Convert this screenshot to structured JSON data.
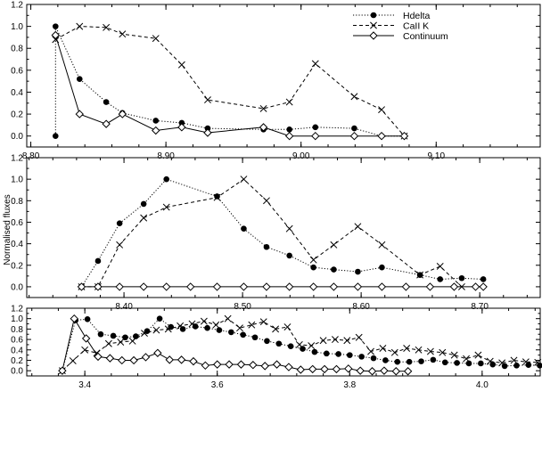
{
  "figure": {
    "ylabel": "Normalised fluxes"
  },
  "legend": {
    "entries": [
      {
        "label": "Hdelta",
        "series": 0
      },
      {
        "label": "CaII  K",
        "series": 1
      },
      {
        "label": "Continuum",
        "series": 2
      }
    ]
  },
  "colors": {
    "ink": "#000000",
    "background": "#ffffff"
  },
  "chart_data": [
    {
      "type": "line",
      "title": "",
      "xlabel": "",
      "ylabel": "",
      "xlim": [
        8.797,
        9.177
      ],
      "ylim": [
        -0.1,
        1.2
      ],
      "xticks": [
        "8.80",
        "8.90",
        "9.00",
        "9.10"
      ],
      "yticks": [
        "0.0",
        "0.2",
        "0.4",
        "0.6",
        "0.8",
        "1.0",
        "1.2"
      ],
      "legend_position": "top-right",
      "series": [
        {
          "name": "Hdelta",
          "marker": "filled-circle",
          "dash": "dotted",
          "x": [
            8.8183,
            8.8183,
            8.8361,
            8.8558,
            8.8678,
            8.8925,
            8.9117,
            8.9309,
            8.9722,
            8.9914,
            9.0106,
            9.0394,
            9.0596,
            9.0764
          ],
          "y": [
            0.0,
            1.0,
            0.52,
            0.31,
            0.21,
            0.14,
            0.12,
            0.07,
            0.06,
            0.06,
            0.08,
            0.07,
            0.0,
            0.0
          ]
        },
        {
          "name": "CaII  K",
          "marker": "cross",
          "dash": "dashed",
          "x": [
            8.8183,
            8.8361,
            8.8558,
            8.8678,
            8.8925,
            8.9117,
            8.9309,
            8.9722,
            8.9914,
            9.0106,
            9.0394,
            9.0596,
            9.0764
          ],
          "y": [
            0.88,
            1.0,
            0.99,
            0.93,
            0.89,
            0.65,
            0.33,
            0.25,
            0.31,
            0.66,
            0.36,
            0.24,
            0.0
          ]
        },
        {
          "name": "Continuum",
          "marker": "open-diamond",
          "dash": "solid",
          "x": [
            8.8183,
            8.8361,
            8.8558,
            8.8678,
            8.8925,
            8.9117,
            8.9309,
            8.9722,
            8.9914,
            9.0106,
            9.0394,
            9.0596,
            9.0764
          ],
          "y": [
            0.92,
            0.2,
            0.11,
            0.2,
            0.05,
            0.08,
            0.03,
            0.08,
            0.0,
            0.0,
            0.0,
            0.0,
            0.0
          ]
        }
      ]
    },
    {
      "type": "line",
      "title": "",
      "xlabel": "",
      "ylabel": "",
      "xlim": [
        8.318,
        8.751
      ],
      "ylim": [
        -0.1,
        1.2
      ],
      "xticks": [
        "8.40",
        "8.50",
        "8.60",
        "8.70"
      ],
      "yticks": [
        "0.0",
        "0.2",
        "0.4",
        "0.6",
        "0.8",
        "1.0",
        "1.2"
      ],
      "series": [
        {
          "name": "Hdelta",
          "marker": "filled-circle",
          "dash": "dotted",
          "x": [
            8.3642,
            8.3781,
            8.3963,
            8.4166,
            8.4358,
            8.4785,
            8.501,
            8.5202,
            8.5395,
            8.5598,
            8.5769,
            8.5972,
            8.6175,
            8.6496,
            8.6666,
            8.6848,
            8.703
          ],
          "y": [
            0.0,
            0.24,
            0.59,
            0.77,
            1.0,
            0.84,
            0.54,
            0.37,
            0.29,
            0.18,
            0.16,
            0.14,
            0.18,
            0.11,
            0.07,
            0.08,
            0.07
          ]
        },
        {
          "name": "CaII  K",
          "marker": "cross",
          "dash": "dashed",
          "x": [
            8.3642,
            8.3781,
            8.3963,
            8.4166,
            8.4358,
            8.4785,
            8.501,
            8.5202,
            8.5395,
            8.5598,
            8.5769,
            8.5972,
            8.6175,
            8.6496,
            8.6666,
            8.6848
          ],
          "y": [
            0.0,
            0.0,
            0.39,
            0.64,
            0.74,
            0.83,
            1.0,
            0.8,
            0.54,
            0.25,
            0.39,
            0.56,
            0.39,
            0.11,
            0.19,
            0.0
          ]
        },
        {
          "name": "Continuum",
          "marker": "open-diamond",
          "dash": "solid",
          "x": [
            8.3642,
            8.3781,
            8.3963,
            8.4166,
            8.4358,
            8.4561,
            8.4785,
            8.501,
            8.5202,
            8.5395,
            8.5598,
            8.5769,
            8.5972,
            8.6175,
            8.6378,
            8.6581,
            8.6784,
            8.6965,
            8.703
          ],
          "y": [
            0.0,
            0.0,
            0.0,
            0.0,
            0.0,
            0.0,
            0.0,
            0.0,
            0.0,
            0.0,
            0.0,
            0.0,
            0.0,
            0.0,
            0.0,
            0.0,
            0.0,
            0.0,
            0.0
          ]
        }
      ]
    },
    {
      "type": "line",
      "title": "",
      "xlabel": "",
      "ylabel": "",
      "xlim": [
        3.3123,
        4.0877
      ],
      "ylim": [
        -0.1,
        1.2
      ],
      "xticks": [
        "3.4",
        "3.6",
        "3.8",
        "4.0"
      ],
      "yticks": [
        "0.0",
        "0.2",
        "0.4",
        "0.6",
        "0.8",
        "1.0",
        "1.2"
      ],
      "series": [
        {
          "name": "Hdelta",
          "marker": "filled-circle",
          "dash": "dotted",
          "x": [
            3.366,
            3.386,
            3.404,
            3.424,
            3.443,
            3.461,
            3.477,
            3.494,
            3.513,
            3.53,
            3.548,
            3.567,
            3.585,
            3.603,
            3.621,
            3.639,
            3.657,
            3.675,
            3.693,
            3.711,
            3.729,
            3.747,
            3.765,
            3.783,
            3.8,
            3.818,
            3.836,
            3.854,
            3.872,
            3.89,
            3.908,
            3.926,
            3.944,
            3.962,
            3.98,
            3.998,
            4.016,
            4.034,
            4.052,
            4.07,
            4.087
          ],
          "y": [
            0.0,
            0.97,
            0.99,
            0.7,
            0.67,
            0.64,
            0.66,
            0.76,
            1.0,
            0.84,
            0.8,
            0.85,
            0.82,
            0.78,
            0.74,
            0.69,
            0.64,
            0.57,
            0.52,
            0.47,
            0.42,
            0.36,
            0.33,
            0.32,
            0.3,
            0.27,
            0.24,
            0.2,
            0.17,
            0.17,
            0.18,
            0.21,
            0.16,
            0.15,
            0.14,
            0.14,
            0.12,
            0.09,
            0.1,
            0.11,
            0.1
          ]
        },
        {
          "name": "CaII  K",
          "marker": "cross",
          "dash": "dashed",
          "x": [
            3.366,
            3.382,
            3.4,
            3.418,
            3.436,
            3.454,
            3.472,
            3.49,
            3.508,
            3.526,
            3.544,
            3.562,
            3.58,
            3.598,
            3.616,
            3.634,
            3.652,
            3.67,
            3.688,
            3.706,
            3.724,
            3.742,
            3.76,
            3.778,
            3.796,
            3.814,
            3.832,
            3.85,
            3.868,
            3.886,
            3.904,
            3.922,
            3.94,
            3.958,
            3.976,
            3.994,
            4.012,
            4.03,
            4.048,
            4.066,
            4.084
          ],
          "y": [
            0.0,
            0.19,
            0.4,
            0.34,
            0.52,
            0.55,
            0.57,
            0.72,
            0.78,
            0.8,
            0.86,
            0.9,
            0.95,
            0.88,
            1.0,
            0.82,
            0.88,
            0.94,
            0.8,
            0.84,
            0.5,
            0.48,
            0.58,
            0.6,
            0.58,
            0.64,
            0.37,
            0.43,
            0.35,
            0.43,
            0.4,
            0.37,
            0.35,
            0.3,
            0.23,
            0.3,
            0.18,
            0.15,
            0.2,
            0.17,
            0.16
          ]
        },
        {
          "name": "Continuum",
          "marker": "open-diamond",
          "dash": "solid",
          "x": [
            3.366,
            3.384,
            3.402,
            3.42,
            3.438,
            3.456,
            3.474,
            3.492,
            3.51,
            3.528,
            3.546,
            3.564,
            3.582,
            3.6,
            3.618,
            3.636,
            3.654,
            3.672,
            3.69,
            3.708,
            3.726,
            3.744,
            3.762,
            3.78,
            3.798,
            3.816,
            3.834,
            3.852,
            3.87,
            3.888
          ],
          "y": [
            0.0,
            1.0,
            0.62,
            0.27,
            0.24,
            0.2,
            0.2,
            0.26,
            0.34,
            0.21,
            0.21,
            0.18,
            0.1,
            0.12,
            0.12,
            0.12,
            0.11,
            0.09,
            0.12,
            0.07,
            0.02,
            0.03,
            0.03,
            0.03,
            0.04,
            0.0,
            -0.01,
            0.0,
            -0.01,
            -0.01
          ]
        }
      ]
    }
  ]
}
